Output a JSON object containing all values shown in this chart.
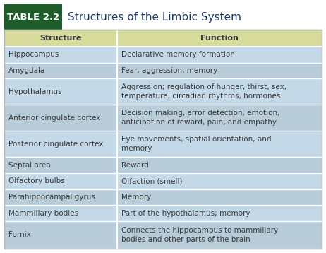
{
  "title_box_label": "TABLE 2.2",
  "title_text": "  Structures of the Limbic System",
  "col_headers": [
    "Structure",
    "Function"
  ],
  "rows": [
    [
      "Hippocampus",
      "Declarative memory formation"
    ],
    [
      "Amygdala",
      "Fear, aggression, memory"
    ],
    [
      "Hypothalamus",
      "Aggression; regulation of hunger, thirst, sex,\ntemperature, circadian rhythms, hormones"
    ],
    [
      "Anterior cingulate cortex",
      "Decision making, error detection, emotion,\nanticipation of reward, pain, and empathy"
    ],
    [
      "Posterior cingulate cortex",
      "Eye movements, spatial orientation, and\nmemory"
    ],
    [
      "Septal area",
      "Reward"
    ],
    [
      "Olfactory bulbs",
      "Olfaction (smell)"
    ],
    [
      "Parahippocampal gyrus",
      "Memory"
    ],
    [
      "Mammillary bodies",
      "Part of the hypothalamus; memory"
    ],
    [
      "Fornix",
      "Connects the hippocampus to mammillary\nbodies and other parts of the brain"
    ]
  ],
  "title_box_bg": "#1e5c2a",
  "title_box_text_color": "#ffffff",
  "title_text_color": "#1a3a6b",
  "header_bg": "#d6db9c",
  "row_bg_light": "#c4d9e8",
  "row_bg_dark": "#b8cdd9",
  "divider_color": "#ffffff",
  "text_color": "#3a3a3a",
  "header_text_color": "#3a3a3a",
  "outer_border_color": "#b0b8b0",
  "col_split": 0.355,
  "fig_bg": "#ffffff",
  "title_bg": "#f0f0f0"
}
